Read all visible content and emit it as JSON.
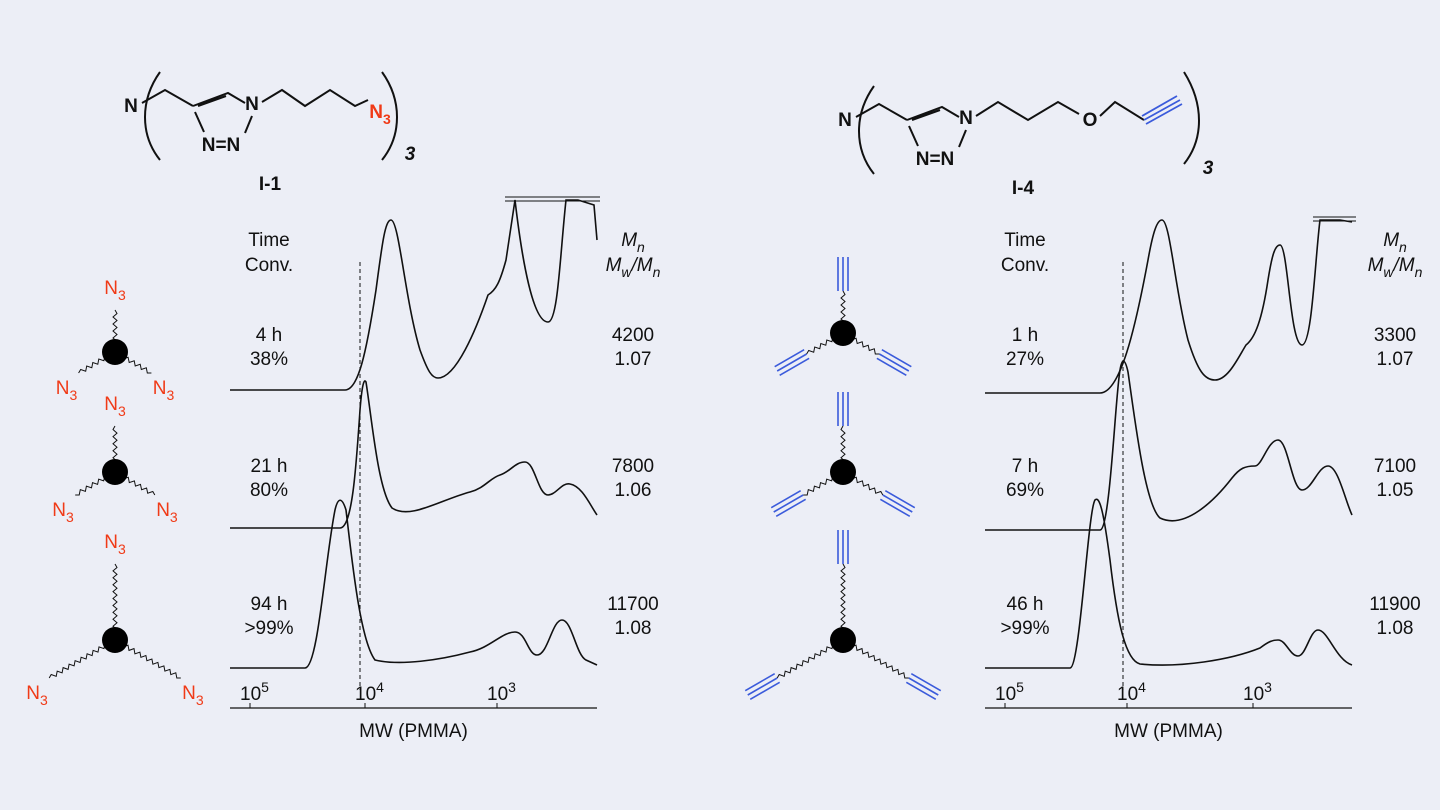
{
  "panels": [
    {
      "compound": "I-1",
      "structure": {
        "amine": "N",
        "ring_top": "N",
        "ring_bottom": "N=N",
        "end": {
          "main": "N",
          "sub": "3"
        },
        "repeat": "3"
      },
      "arm_label": {
        "main": "N",
        "sub": "3"
      },
      "headers": {
        "time": "Time",
        "conv": "Conv.",
        "mn": {
          "main": "M",
          "sub": "n"
        },
        "pdi": [
          {
            "main": "M",
            "sub": "w"
          },
          {
            "main": "/M",
            "sub": "n"
          }
        ]
      },
      "rows": [
        {
          "time": "4 h",
          "conv": "38%",
          "mn": 4200,
          "pdi": 1.07
        },
        {
          "time": "21 h",
          "conv": "80%",
          "mn": 7800,
          "pdi": 1.06
        },
        {
          "time": "94 h",
          "conv": ">99%",
          "mn": 11700,
          "pdi": 1.08
        }
      ],
      "x_axis": {
        "label": "MW (PMMA)",
        "ticks": [
          {
            "base": "10",
            "exp": "5"
          },
          {
            "base": "10",
            "exp": "4"
          },
          {
            "base": "10",
            "exp": "3"
          }
        ]
      }
    },
    {
      "compound": "I-4",
      "structure": {
        "amine": "N",
        "ring_top": "N",
        "ring_bottom": "N=N",
        "ether": "O",
        "repeat": "3"
      },
      "headers": {
        "time": "Time",
        "conv": "Conv.",
        "mn": {
          "main": "M",
          "sub": "n"
        },
        "pdi": [
          {
            "main": "M",
            "sub": "w"
          },
          {
            "main": "/M",
            "sub": "n"
          }
        ]
      },
      "rows": [
        {
          "time": "1 h",
          "conv": "27%",
          "mn": 3300,
          "pdi": 1.07
        },
        {
          "time": "7 h",
          "conv": "69%",
          "mn": 7100,
          "pdi": 1.05
        },
        {
          "time": "46 h",
          "conv": ">99%",
          "mn": 11900,
          "pdi": 1.08
        }
      ],
      "x_axis": {
        "label": "MW (PMMA)",
        "ticks": [
          {
            "base": "10",
            "exp": "5"
          },
          {
            "base": "10",
            "exp": "4"
          },
          {
            "base": "10",
            "exp": "3"
          }
        ]
      }
    }
  ]
}
